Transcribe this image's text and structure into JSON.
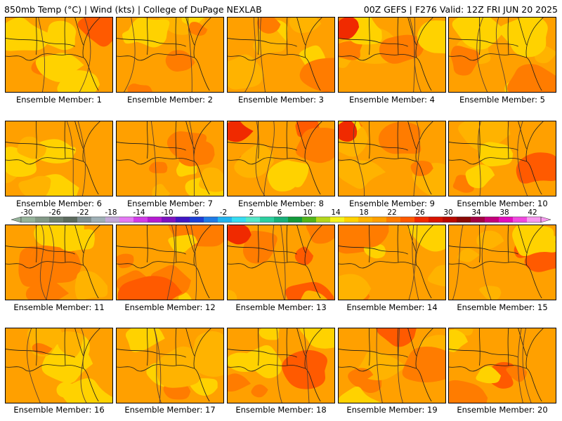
{
  "header": {
    "left": "850mb Temp (°C) | Wind (kts) | College of DuPage NEXLAB",
    "right": "00Z GEFS | F276 Valid: 12Z FRI JUN 20 2025"
  },
  "panels": [
    {
      "label": "Ensemble Member: 1",
      "warmth": 0.35
    },
    {
      "label": "Ensemble Member: 2",
      "warmth": 0.3
    },
    {
      "label": "Ensemble Member: 3",
      "warmth": 0.25
    },
    {
      "label": "Ensemble Member: 4",
      "warmth": 0.65
    },
    {
      "label": "Ensemble Member: 5",
      "warmth": 0.35
    },
    {
      "label": "Ensemble Member: 6",
      "warmth": 0.3
    },
    {
      "label": "Ensemble Member: 7",
      "warmth": 0.35
    },
    {
      "label": "Ensemble Member: 8",
      "warmth": 0.6
    },
    {
      "label": "Ensemble Member: 9",
      "warmth": 0.55
    },
    {
      "label": "Ensemble Member: 10",
      "warmth": 0.45
    },
    {
      "label": "Ensemble Member: 11",
      "warmth": 0.35
    },
    {
      "label": "Ensemble Member: 12",
      "warmth": 0.45
    },
    {
      "label": "Ensemble Member: 13",
      "warmth": 0.6
    },
    {
      "label": "Ensemble Member: 14",
      "warmth": 0.25
    },
    {
      "label": "Ensemble Member: 15",
      "warmth": 0.45
    },
    {
      "label": "Ensemble Member: 16",
      "warmth": 0.45
    },
    {
      "label": "Ensemble Member: 17",
      "warmth": 0.15
    },
    {
      "label": "Ensemble Member: 18",
      "warmth": 0.45
    },
    {
      "label": "Ensemble Member: 19",
      "warmth": 0.4
    },
    {
      "label": "Ensemble Member: 20",
      "warmth": 0.45
    }
  ],
  "colorbar": {
    "labels": [
      "-30",
      "-26",
      "-22",
      "-18",
      "-14",
      "-10",
      "-6",
      "-2",
      "2",
      "6",
      "10",
      "14",
      "18",
      "22",
      "26",
      "30",
      "34",
      "38",
      "42"
    ],
    "colors": [
      "#95b39a",
      "#829986",
      "#6d7f70",
      "#5c6b5e",
      "#7f8f91",
      "#9fb0b6",
      "#c2a8d8",
      "#e479f4",
      "#d23ce8",
      "#b51ad1",
      "#7e12c0",
      "#4116c4",
      "#1b3ed6",
      "#1f7be6",
      "#22b4f0",
      "#37dcf2",
      "#55e8c8",
      "#2dcfa0",
      "#17b07a",
      "#129a3a",
      "#52b51a",
      "#b4d71c",
      "#f6f21a",
      "#ffd200",
      "#ffb300",
      "#ffa000",
      "#ff7c00",
      "#ff5a00",
      "#f02a00",
      "#d81200",
      "#b80800",
      "#8a0806",
      "#a30042",
      "#c3007a",
      "#e20dbd",
      "#f04adf",
      "#f79af0"
    ]
  }
}
